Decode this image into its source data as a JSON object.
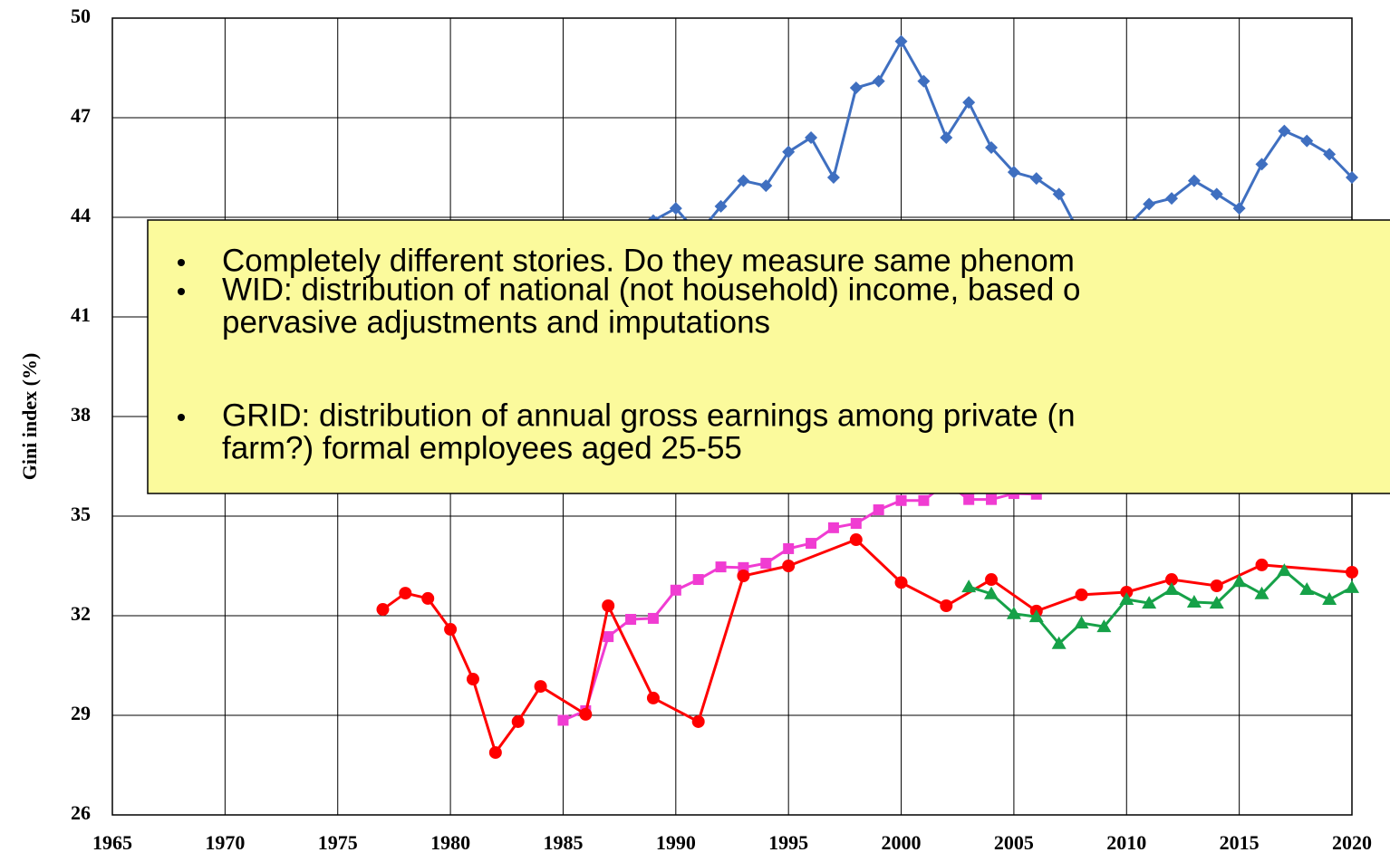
{
  "chart_data": {
    "type": "line",
    "y_label": "Gini index (%)",
    "xlim": [
      1965,
      2020
    ],
    "xticks": [
      1965,
      1970,
      1975,
      1980,
      1985,
      1990,
      1995,
      2000,
      2005,
      2010,
      2015,
      2020
    ],
    "ylim": [
      26,
      50
    ],
    "yticks": [
      26,
      29,
      32,
      35,
      38,
      41,
      44,
      47,
      50
    ],
    "grid": true,
    "series": [
      {
        "color": "#3f6fc0",
        "marker": "diamond",
        "x": [
          1988,
          1989,
          1990,
          1991,
          1992,
          1993,
          1994,
          1995,
          1996,
          1997,
          1998,
          1999,
          2000,
          2001,
          2002,
          2003,
          2004,
          2005,
          2006,
          2007,
          2008,
          2009,
          2010,
          2011,
          2012,
          2013,
          2014,
          2015,
          2016,
          2017,
          2018,
          2019,
          2020
        ],
        "values": [
          43.7,
          43.9,
          44.27,
          43.5,
          44.33,
          45.1,
          44.95,
          45.97,
          46.4,
          45.2,
          47.9,
          48.1,
          49.3,
          48.1,
          46.4,
          47.46,
          46.1,
          45.36,
          45.17,
          44.7,
          43.4,
          43.3,
          43.7,
          44.4,
          44.57,
          45.1,
          44.7,
          44.27,
          45.6,
          46.6,
          46.3,
          45.9,
          45.2
        ]
      },
      {
        "color": "#f03cd2",
        "marker": "square",
        "x": [
          1985,
          1986,
          1987,
          1988,
          1989,
          1990,
          1991,
          1992,
          1993,
          1994,
          1995,
          1996,
          1997,
          1998,
          1999,
          2000,
          2001,
          2002,
          2003,
          2004,
          2005,
          2006
        ],
        "values": [
          28.85,
          29.14,
          31.37,
          31.89,
          31.92,
          32.77,
          33.09,
          33.47,
          33.45,
          33.58,
          34.02,
          34.18,
          34.65,
          34.78,
          35.19,
          35.47,
          35.47,
          36.0,
          35.5,
          35.5,
          35.68,
          35.66
        ]
      },
      {
        "color": "#ff0000",
        "marker": "circle",
        "x": [
          1977,
          1978,
          1979,
          1980,
          1981,
          1982,
          1983,
          1984,
          1986,
          1987,
          1989,
          1991,
          1993,
          1995,
          1998,
          2000,
          2002,
          2004,
          2006,
          2008,
          2010,
          2012,
          2014,
          2016,
          2020
        ],
        "values": [
          32.19,
          32.68,
          32.52,
          31.59,
          30.09,
          27.88,
          28.81,
          29.87,
          29.03,
          32.3,
          29.52,
          28.81,
          33.2,
          33.5,
          34.29,
          33.0,
          32.3,
          33.09,
          32.14,
          32.63,
          32.71,
          33.09,
          32.9,
          33.53,
          33.31
        ]
      },
      {
        "color": "#16a148",
        "marker": "triangle",
        "x": [
          2003,
          2004,
          2005,
          2006,
          2007,
          2008,
          2009,
          2010,
          2011,
          2012,
          2013,
          2014,
          2015,
          2016,
          2017,
          2018,
          2019,
          2020
        ],
        "values": [
          32.87,
          32.66,
          32.06,
          31.97,
          31.16,
          31.78,
          31.67,
          32.49,
          32.38,
          32.79,
          32.41,
          32.38,
          33.03,
          32.66,
          33.36,
          32.79,
          32.49,
          32.85
        ]
      }
    ]
  },
  "text_box": {
    "bullets": [
      [
        "Completely different stories. Do they measure same phenom"
      ],
      [
        "WID: distribution of national (not household) income, based o",
        "pervasive adjustments and imputations"
      ],
      [
        "GRID: distribution of annual gross earnings among private (n",
        "farm?) formal employees aged 25-55"
      ]
    ]
  }
}
